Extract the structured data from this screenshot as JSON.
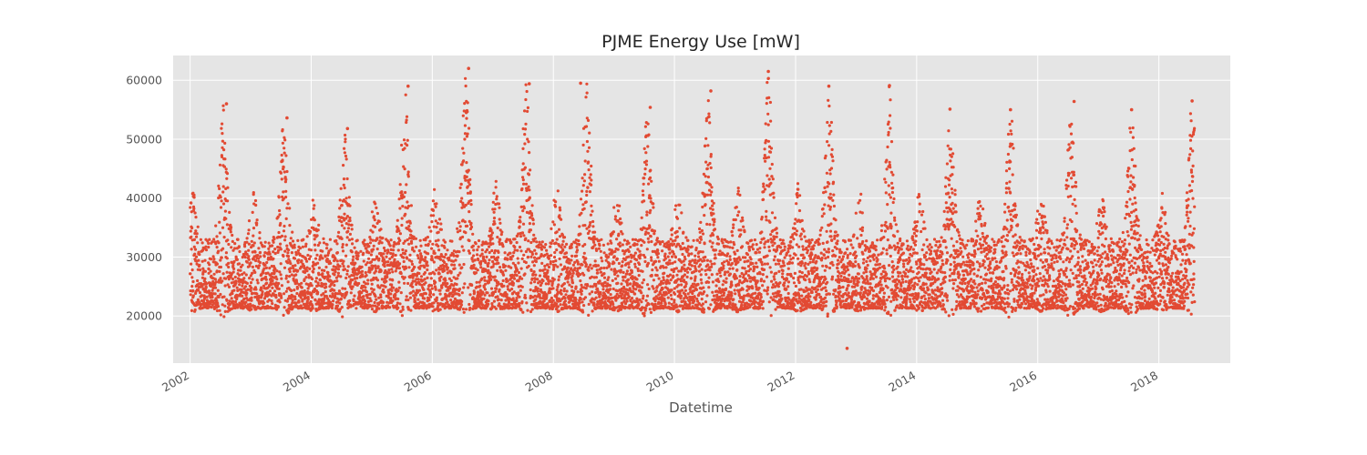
{
  "chart_data": {
    "type": "scatter",
    "title": "PJME Energy Use [mW]",
    "xlabel": "Datetime",
    "ylabel": "",
    "xlim": [
      2001.72,
      2019.18
    ],
    "ylim": [
      12000,
      64200
    ],
    "x_ticks": [
      2002,
      2004,
      2006,
      2008,
      2010,
      2012,
      2014,
      2016,
      2018
    ],
    "x_tick_labels": [
      "2002",
      "2004",
      "2006",
      "2008",
      "2010",
      "2012",
      "2014",
      "2016",
      "2018"
    ],
    "y_ticks": [
      20000,
      30000,
      40000,
      50000,
      60000
    ],
    "y_tick_labels": [
      "20000",
      "30000",
      "40000",
      "50000",
      "60000"
    ],
    "x_range": [
      2002.0,
      2018.59
    ],
    "grid": true,
    "legend": "none",
    "series": [
      {
        "color": "#E24A33",
        "summary": "Hourly load from 2002 to mid-2018; baseline roughly 20000–40000 with seasonal peaks each summer and smaller winter peaks",
        "summer_peaks": [
          {
            "x": 2002.6,
            "y": 56000
          },
          {
            "x": 2003.6,
            "y": 53600
          },
          {
            "x": 2004.6,
            "y": 51800
          },
          {
            "x": 2005.6,
            "y": 59000
          },
          {
            "x": 2006.6,
            "y": 62000
          },
          {
            "x": 2007.6,
            "y": 59400
          },
          {
            "x": 2008.45,
            "y": 59500
          },
          {
            "x": 2009.6,
            "y": 55400
          },
          {
            "x": 2010.6,
            "y": 58200
          },
          {
            "x": 2011.55,
            "y": 61500
          },
          {
            "x": 2012.55,
            "y": 59000
          },
          {
            "x": 2013.55,
            "y": 59100
          },
          {
            "x": 2014.55,
            "y": 55100
          },
          {
            "x": 2015.55,
            "y": 55000
          },
          {
            "x": 2016.6,
            "y": 56400
          },
          {
            "x": 2017.55,
            "y": 55000
          },
          {
            "x": 2018.55,
            "y": 56500
          }
        ],
        "min_point": {
          "x": 2012.85,
          "y": 14500
        }
      }
    ]
  },
  "colors": {
    "plot_background": "#E5E5E5",
    "grid": "#FFFFFF",
    "points": "#E24A33"
  }
}
